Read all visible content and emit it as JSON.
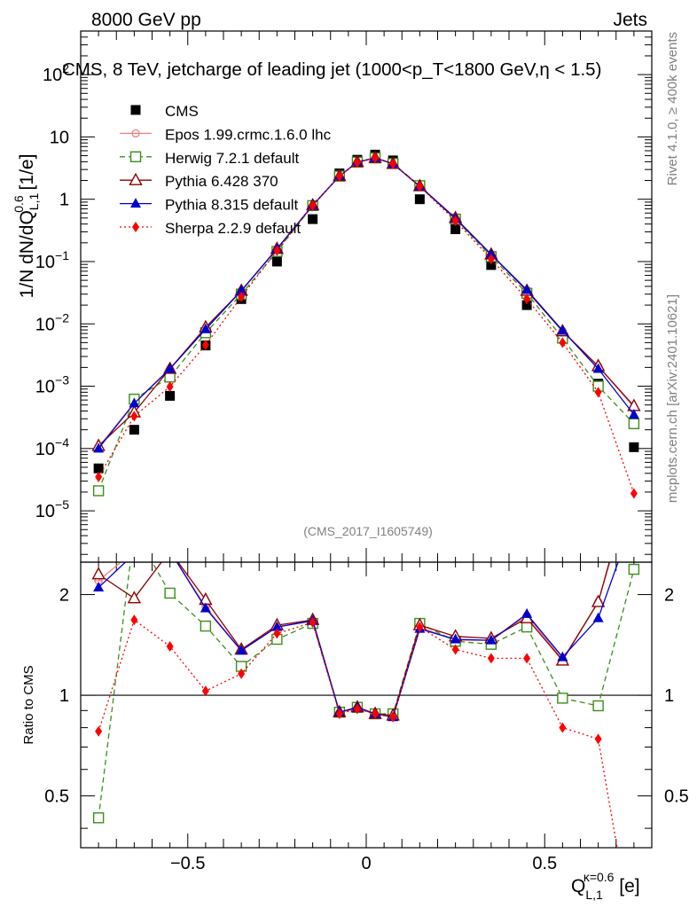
{
  "header": {
    "left": "8000 GeV pp",
    "right": "Jets"
  },
  "side_labels": {
    "rivet": "Rivet 4.1.0, ≥ 400k events",
    "mcplots": "mcplots.cern.ch [arXiv:2401.10621]"
  },
  "colors": {
    "cms": "#000000",
    "epos": "#f08080",
    "herwig": "#3a8f1a",
    "pythia6": "#8b0000",
    "pythia8": "#0000cd",
    "sherpa": "#ff0000",
    "ref_gray": "#808080"
  },
  "chart_data": [
    {
      "type": "scatter",
      "panel": "main",
      "title": "CMS, 8 TeV, jetcharge of leading jet (1000<p_T<1800 GeV,η < 1.5)",
      "ylabel": "1/N dN/dQ^{0.6}_{L,1} [1/e]",
      "ylabel_parts": {
        "base": "1/N dN/dQ",
        "sup": "0.6",
        "sub": "L,1",
        "unit": " [1/e]"
      },
      "yscale": "log",
      "ylim": [
        1.5e-06,
        500
      ],
      "xlim": [
        -0.8,
        0.8
      ],
      "reference_label": "(CMS_2017_I1605749)",
      "y_ticks": [
        {
          "value": 1e-05,
          "base": "10",
          "exp": "−5"
        },
        {
          "value": 0.0001,
          "base": "10",
          "exp": "−4"
        },
        {
          "value": 0.001,
          "base": "10",
          "exp": "−3"
        },
        {
          "value": 0.01,
          "base": "10",
          "exp": "−2"
        },
        {
          "value": 0.1,
          "base": "10",
          "exp": "−1"
        },
        {
          "value": 1,
          "base": "1",
          "exp": ""
        },
        {
          "value": 10,
          "base": "10",
          "exp": ""
        },
        {
          "value": 100,
          "base": "10",
          "exp": "2"
        }
      ],
      "x": [
        -0.75,
        -0.65,
        -0.55,
        -0.45,
        -0.35,
        -0.25,
        -0.15,
        -0.075,
        -0.025,
        0.025,
        0.075,
        0.15,
        0.25,
        0.35,
        0.45,
        0.55,
        0.65,
        0.75
      ],
      "series": [
        {
          "name": "CMS",
          "style": "marker-square",
          "legend": "CMS",
          "values": [
            4.8e-05,
            0.0002,
            0.0007,
            0.0045,
            0.025,
            0.1,
            0.48,
            2.6,
            4.3,
            5.2,
            4.2,
            1.0,
            0.33,
            0.088,
            0.02,
            0.006,
            0.0011,
            0.000105
          ]
        },
        {
          "name": "Epos 1.99.crmc.1.6.0 lhc",
          "style": "epos",
          "legend": "Epos 1.99.crmc.1.6.0 lhc",
          "values": [
            0.000105,
            0.00054,
            0.0019,
            0.0083,
            0.034,
            0.16,
            0.8,
            2.35,
            3.9,
            4.6,
            3.7,
            1.6,
            0.48,
            0.13,
            0.035,
            0.0077,
            0.0021,
            0.00046
          ]
        },
        {
          "name": "Herwig 7.2.1 default",
          "style": "herwig",
          "legend": "Herwig 7.2.1 default",
          "values": [
            2.1e-05,
            0.00062,
            0.0014,
            0.0072,
            0.03,
            0.145,
            0.79,
            2.35,
            3.95,
            4.6,
            3.75,
            1.65,
            0.48,
            0.12,
            0.031,
            0.0059,
            0.001,
            0.00025
          ]
        },
        {
          "name": "Pythia 6.428 370",
          "style": "pythia6",
          "legend": "Pythia 6.428 370",
          "values": [
            0.00011,
            0.00038,
            0.0019,
            0.0088,
            0.034,
            0.16,
            0.8,
            2.35,
            3.95,
            4.6,
            3.7,
            1.62,
            0.5,
            0.13,
            0.034,
            0.0076,
            0.0021,
            0.00048
          ]
        },
        {
          "name": "Pythia 8.315 default",
          "style": "pythia8",
          "legend": "Pythia 8.315 default",
          "values": [
            0.0001,
            0.00053,
            0.0019,
            0.0082,
            0.034,
            0.16,
            0.8,
            2.35,
            3.95,
            4.6,
            3.7,
            1.6,
            0.49,
            0.13,
            0.035,
            0.0078,
            0.0019,
            0.00035
          ]
        },
        {
          "name": "Sherpa 2.2.9 default",
          "style": "sherpa",
          "legend": "Sherpa 2.2.9 default",
          "values": [
            3.5e-05,
            0.00033,
            0.00098,
            0.0046,
            0.027,
            0.15,
            0.79,
            2.35,
            3.9,
            4.6,
            3.7,
            1.6,
            0.45,
            0.11,
            0.025,
            0.005,
            0.0008,
            1.9e-05
          ]
        }
      ]
    },
    {
      "type": "line",
      "panel": "ratio",
      "ylabel": "Ratio to CMS",
      "xlabel": "Q^{κ=0.6}_{L,1} [e]",
      "xlabel_parts": {
        "base": "Q",
        "sup": "κ=0.6",
        "sub": "L,1",
        "unit": " [e]"
      },
      "yscale": "log",
      "ylim": [
        0.35,
        2.5
      ],
      "xlim": [
        -0.8,
        0.8
      ],
      "reference_line": 1,
      "y_ticks": [
        {
          "value": 0.5,
          "label": "0.5"
        },
        {
          "value": 1,
          "label": "1"
        },
        {
          "value": 2,
          "label": "2"
        }
      ],
      "x_ticks": [
        {
          "value": -0.5,
          "label": "−0.5"
        },
        {
          "value": 0,
          "label": "0"
        },
        {
          "value": 0.5,
          "label": "0.5"
        }
      ],
      "x": [
        -0.75,
        -0.65,
        -0.55,
        -0.45,
        -0.35,
        -0.25,
        -0.15,
        -0.075,
        -0.025,
        0.025,
        0.075,
        0.15,
        0.25,
        0.35,
        0.45,
        0.55,
        0.65,
        0.75
      ],
      "series": [
        {
          "name": "Epos 1.99.crmc.1.6.0 lhc",
          "style": "epos",
          "values": [
            2.2,
            2.7,
            2.7,
            1.84,
            1.36,
            1.6,
            1.67,
            0.89,
            0.91,
            0.88,
            0.87,
            1.6,
            1.46,
            1.46,
            1.73,
            1.28,
            1.9,
            4.4
          ]
        },
        {
          "name": "Herwig 7.2.1 default",
          "style": "herwig",
          "values": [
            0.43,
            3.1,
            2.02,
            1.61,
            1.22,
            1.47,
            1.64,
            0.89,
            0.92,
            0.88,
            0.88,
            1.64,
            1.45,
            1.42,
            1.6,
            0.98,
            0.93,
            2.38
          ]
        },
        {
          "name": "Pythia 6.428 370",
          "style": "pythia6",
          "values": [
            2.3,
            1.95,
            2.7,
            1.93,
            1.37,
            1.62,
            1.68,
            0.89,
            0.92,
            0.88,
            0.87,
            1.62,
            1.5,
            1.48,
            1.7,
            1.27,
            1.9,
            4.6
          ]
        },
        {
          "name": "Pythia 8.315 default",
          "style": "pythia8",
          "values": [
            2.1,
            2.65,
            2.7,
            1.82,
            1.36,
            1.6,
            1.67,
            0.89,
            0.92,
            0.88,
            0.86,
            1.58,
            1.47,
            1.46,
            1.75,
            1.3,
            1.7,
            3.4
          ]
        },
        {
          "name": "Sherpa 2.2.9 default",
          "style": "sherpa",
          "values": [
            0.78,
            1.68,
            1.4,
            1.03,
            1.16,
            1.53,
            1.65,
            0.88,
            0.91,
            0.88,
            0.86,
            1.6,
            1.37,
            1.29,
            1.29,
            0.8,
            0.74,
            0.18
          ]
        }
      ]
    }
  ]
}
